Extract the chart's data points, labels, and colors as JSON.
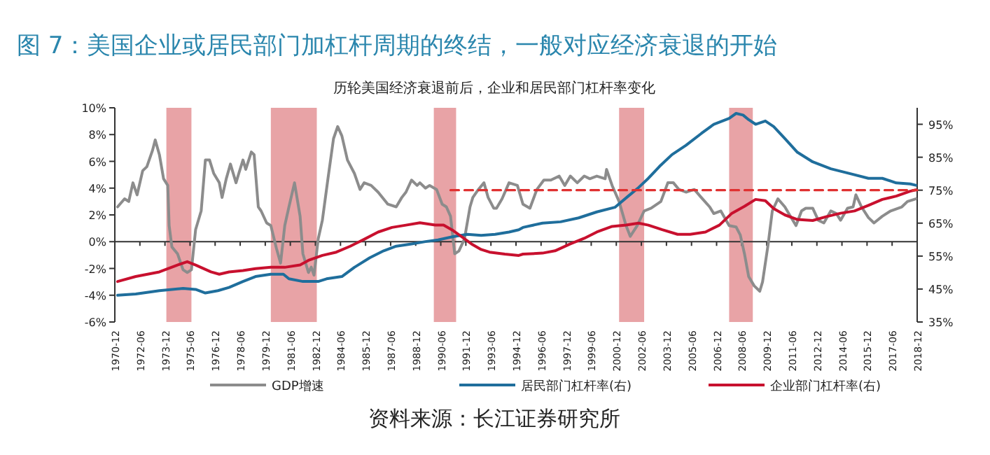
{
  "chart_data": {
    "type": "line",
    "title": "图 7：美国企业或居民部门加杠杆周期的终结，一般对应经济衰退的开始",
    "subtitle": "历轮美国经济衰退前后，企业和居民部门杠杆率变化",
    "annotations": [
      "资料来源：长江证券研究所"
    ],
    "xlim": [
      "1970-12",
      "2018-12"
    ],
    "xticks": [
      "1970-12",
      "1972-06",
      "1973-12",
      "1975-06",
      "1976-12",
      "1978-06",
      "1979-12",
      "1981-06",
      "1982-12",
      "1984-06",
      "1985-12",
      "1987-06",
      "1988-12",
      "1990-06",
      "1991-12",
      "1993-06",
      "1994-12",
      "1996-06",
      "1997-12",
      "1999-06",
      "2000-12",
      "2002-06",
      "2003-12",
      "2005-06",
      "2006-12",
      "2008-06",
      "2009-12",
      "2011-06",
      "2012-12",
      "2014-06",
      "2015-12",
      "2017-06",
      "2018-12"
    ],
    "ylim": [
      -6,
      10
    ],
    "yticks": [
      {
        "value": -6,
        "label": "-6%"
      },
      {
        "value": -4,
        "label": "-4%"
      },
      {
        "value": -2,
        "label": "-2%"
      },
      {
        "value": 0,
        "label": "0%"
      },
      {
        "value": 2,
        "label": "2%"
      },
      {
        "value": 4,
        "label": "4%"
      },
      {
        "value": 6,
        "label": "6%"
      },
      {
        "value": 8,
        "label": "8%"
      },
      {
        "value": 10,
        "label": "10%"
      }
    ],
    "y2lim": [
      35,
      100
    ],
    "y2ticks": [
      {
        "value": 35,
        "label": "35%"
      },
      {
        "value": 45,
        "label": "45%"
      },
      {
        "value": 55,
        "label": "55%"
      },
      {
        "value": 65,
        "label": "65%"
      },
      {
        "value": 75,
        "label": "75%"
      },
      {
        "value": 85,
        "label": "85%"
      },
      {
        "value": 95,
        "label": "95%"
      }
    ],
    "bands": [
      {
        "axis": "x",
        "from": "1974-01",
        "to": "1975-07",
        "color": "#e8a3a6"
      },
      {
        "axis": "x",
        "from": "1980-04",
        "to": "1983-01",
        "color": "#e8a3a6"
      },
      {
        "axis": "x",
        "from": "1990-01",
        "to": "1991-05",
        "color": "#e8a3a6"
      },
      {
        "axis": "x",
        "from": "2001-02",
        "to": "2002-08",
        "color": "#e8a3a6"
      },
      {
        "axis": "x",
        "from": "2007-09",
        "to": "2009-02",
        "color": "#e8a3a6"
      }
    ],
    "ref_lines": [
      {
        "axis": "y",
        "value": 0,
        "color": "#333333"
      }
    ],
    "grid": false,
    "legend": "bottom",
    "marker": "none",
    "series": [
      {
        "name": "GDP增速",
        "color": "#8c8c8c",
        "x": [
          "1971-02",
          "1971-07",
          "1971-10",
          "1972-01",
          "1972-04",
          "1972-08",
          "1972-11",
          "1973-03",
          "1973-05",
          "1973-08",
          "1973-11",
          "1974-02",
          "1974-03",
          "1974-05",
          "1974-09",
          "1975-01",
          "1975-04",
          "1975-07",
          "1975-10",
          "1976-02",
          "1976-05",
          "1976-08",
          "1976-11",
          "1977-03",
          "1977-05",
          "1977-08",
          "1977-11",
          "1978-03",
          "1978-05",
          "1978-08",
          "1978-10",
          "1979-02",
          "1979-04",
          "1979-07",
          "1979-09",
          "1980-01",
          "1980-04",
          "1980-08",
          "1980-11",
          "1981-02",
          "1981-05",
          "1981-09",
          "1982-01",
          "1982-03",
          "1982-07",
          "1982-09",
          "1982-11",
          "1983-02",
          "1983-05",
          "1983-09",
          "1984-01",
          "1984-04",
          "1984-07",
          "1984-11",
          "1985-04",
          "1985-08",
          "1985-11",
          "1986-04",
          "1986-09",
          "1987-04",
          "1987-10",
          "1988-02",
          "1988-05",
          "1988-09",
          "1989-01",
          "1989-03",
          "1989-07",
          "1989-10",
          "1990-03",
          "1990-07",
          "1990-10",
          "1991-01",
          "1991-04",
          "1991-07",
          "1991-11",
          "1992-03",
          "1992-05",
          "1992-09",
          "1993-01",
          "1993-04",
          "1993-08",
          "1993-10",
          "1994-02",
          "1994-07",
          "1995-01",
          "1995-05",
          "1995-10",
          "1996-03",
          "1996-08",
          "1997-01",
          "1997-07",
          "1997-11",
          "1998-03",
          "1998-08",
          "1999-01",
          "1999-05",
          "1999-10",
          "2000-04",
          "2000-05",
          "2000-09",
          "2001-02",
          "2001-07",
          "2001-10",
          "2002-03",
          "2002-08",
          "2003-01",
          "2003-08",
          "2004-01",
          "2004-05",
          "2004-09",
          "2005-02",
          "2005-08",
          "2006-01",
          "2006-07",
          "2006-10",
          "2007-03",
          "2007-09",
          "2008-02",
          "2008-05",
          "2008-08",
          "2008-11",
          "2009-03",
          "2009-07",
          "2009-09",
          "2010-01",
          "2010-04",
          "2010-08",
          "2011-01",
          "2011-05",
          "2011-09",
          "2012-01",
          "2012-04",
          "2012-09",
          "2013-01",
          "2013-05",
          "2013-10",
          "2014-02",
          "2014-05",
          "2014-10",
          "2015-02",
          "2015-04",
          "2015-08",
          "2016-01",
          "2016-05",
          "2016-11",
          "2017-05",
          "2018-01",
          "2018-05",
          "2018-11"
        ],
        "values": [
          2.6,
          3.2,
          3.0,
          4.4,
          3.5,
          5.3,
          5.6,
          6.8,
          7.6,
          6.5,
          4.7,
          4.2,
          1.2,
          -0.4,
          -0.9,
          -2.1,
          -2.3,
          -2.1,
          0.9,
          2.3,
          6.1,
          6.1,
          5.1,
          4.4,
          3.3,
          4.7,
          5.8,
          4.4,
          5.1,
          6.1,
          5.4,
          6.7,
          6.5,
          2.6,
          2.3,
          1.4,
          1.2,
          -0.5,
          -1.6,
          1.2,
          2.6,
          4.4,
          1.9,
          -0.9,
          -2.3,
          -1.9,
          -2.5,
          0.2,
          1.6,
          4.7,
          7.7,
          8.6,
          7.9,
          6.1,
          5.1,
          3.9,
          4.4,
          4.2,
          3.7,
          2.8,
          2.6,
          3.3,
          3.7,
          4.6,
          4.2,
          4.4,
          4.0,
          4.2,
          3.9,
          2.8,
          2.6,
          1.9,
          -0.9,
          -0.7,
          0.2,
          2.6,
          3.3,
          3.9,
          4.4,
          3.3,
          2.5,
          2.5,
          3.2,
          4.4,
          4.2,
          2.8,
          2.5,
          3.9,
          4.6,
          4.6,
          4.9,
          4.2,
          4.9,
          4.4,
          4.9,
          4.7,
          4.9,
          4.7,
          5.4,
          4.2,
          3.0,
          1.2,
          0.4,
          1.2,
          2.3,
          2.5,
          3.0,
          4.4,
          4.4,
          3.9,
          3.7,
          3.9,
          3.3,
          2.6,
          2.1,
          2.3,
          1.2,
          1.1,
          0.5,
          -0.9,
          -2.6,
          -3.3,
          -3.7,
          -3.0,
          -0.2,
          2.3,
          3.2,
          2.6,
          1.9,
          1.2,
          2.3,
          2.5,
          2.5,
          1.6,
          1.4,
          2.3,
          2.1,
          1.6,
          2.5,
          2.6,
          3.5,
          2.6,
          1.8,
          1.4,
          1.9,
          2.3,
          2.6,
          3.0,
          3.2
        ]
      },
      {
        "name": "居民部门杠杆率(右)",
        "color": "#1f6e9c",
        "axis": "y2",
        "x": [
          "1971-02",
          "1972-03",
          "1973-08",
          "1975-01",
          "1975-10",
          "1976-05",
          "1977-02",
          "1977-10",
          "1978-08",
          "1979-05",
          "1980-04",
          "1981-01",
          "1981-05",
          "1982-03",
          "1983-02",
          "1983-08",
          "1984-07",
          "1985-04",
          "1986-03",
          "1987-01",
          "1987-10",
          "1988-09",
          "1989-07",
          "1990-04",
          "1991-03",
          "1992-01",
          "1992-11",
          "1993-09",
          "1994-07",
          "1995-02",
          "1995-05",
          "1996-07",
          "1997-08",
          "1998-09",
          "1999-10",
          "2000-11",
          "2001-08",
          "2002-04",
          "2002-11",
          "2003-07",
          "2004-04",
          "2005-02",
          "2006-01",
          "2006-10",
          "2007-09",
          "2008-02",
          "2008-07",
          "2008-11",
          "2009-04",
          "2009-11",
          "2010-05",
          "2011-01",
          "2011-10",
          "2012-09",
          "2013-10",
          "2014-11",
          "2016-01",
          "2016-11",
          "2017-09",
          "2018-07",
          "2018-11"
        ],
        "values": [
          43.1,
          43.5,
          44.5,
          45.2,
          44.9,
          43.8,
          44.5,
          45.5,
          47.3,
          48.8,
          49.5,
          49.5,
          48.1,
          47.3,
          47.3,
          48.1,
          48.8,
          51.6,
          54.5,
          56.6,
          58.0,
          58.7,
          59.4,
          59.9,
          60.9,
          61.6,
          61.3,
          61.6,
          62.3,
          63.0,
          63.7,
          65.0,
          65.4,
          66.6,
          68.4,
          69.8,
          73.0,
          75.8,
          78.6,
          82.2,
          85.8,
          88.6,
          92.2,
          95.0,
          96.8,
          98.3,
          97.8,
          96.4,
          95.0,
          96.0,
          94.3,
          90.7,
          86.5,
          83.6,
          81.5,
          80.1,
          78.6,
          78.6,
          77.2,
          76.9,
          76.5
        ]
      },
      {
        "name": "企业部门杠杆率(右)",
        "color": "#c8102e",
        "axis": "y2",
        "x": [
          "1971-02",
          "1972-03",
          "1973-08",
          "1974-09",
          "1975-04",
          "1975-10",
          "1976-09",
          "1977-03",
          "1977-10",
          "1978-08",
          "1979-05",
          "1980-04",
          "1981-02",
          "1982-01",
          "1982-07",
          "1983-05",
          "1984-03",
          "1985-01",
          "1985-11",
          "1986-09",
          "1987-07",
          "1988-05",
          "1989-03",
          "1990-02",
          "1990-08",
          "1991-03",
          "1991-09",
          "1992-04",
          "1992-11",
          "1993-05",
          "1994-04",
          "1995-02",
          "1995-05",
          "1996-07",
          "1997-04",
          "1998-03",
          "1999-01",
          "1999-10",
          "2000-09",
          "2001-07",
          "2002-04",
          "2002-11",
          "2003-09",
          "2004-08",
          "2005-05",
          "2006-04",
          "2007-02",
          "2007-11",
          "2008-08",
          "2009-04",
          "2009-11",
          "2010-05",
          "2011-01",
          "2011-10",
          "2012-09",
          "2013-07",
          "2014-05",
          "2015-03",
          "2016-01",
          "2016-11",
          "2017-09",
          "2018-07",
          "2018-11"
        ],
        "values": [
          47.3,
          48.8,
          50.2,
          52.3,
          53.3,
          52.3,
          50.2,
          49.5,
          50.2,
          50.6,
          51.2,
          51.6,
          51.6,
          52.3,
          53.7,
          55.2,
          56.2,
          58.0,
          60.1,
          62.3,
          63.7,
          64.4,
          65.1,
          64.4,
          64.4,
          62.7,
          60.9,
          58.7,
          57.0,
          56.2,
          55.6,
          55.2,
          55.6,
          55.9,
          56.6,
          58.7,
          60.4,
          62.3,
          64.0,
          64.4,
          65.0,
          64.4,
          63.0,
          61.6,
          61.6,
          62.3,
          64.4,
          68.0,
          70.1,
          72.2,
          71.8,
          69.4,
          67.5,
          66.1,
          65.8,
          67.0,
          68.0,
          68.7,
          70.4,
          72.2,
          73.2,
          74.7,
          75.1
        ]
      },
      {
        "color": "#e03030",
        "axis": "y2",
        "line_style": "dashed",
        "x": [
          "1991-01",
          "2018-12"
        ],
        "values": [
          75,
          75
        ]
      }
    ]
  }
}
